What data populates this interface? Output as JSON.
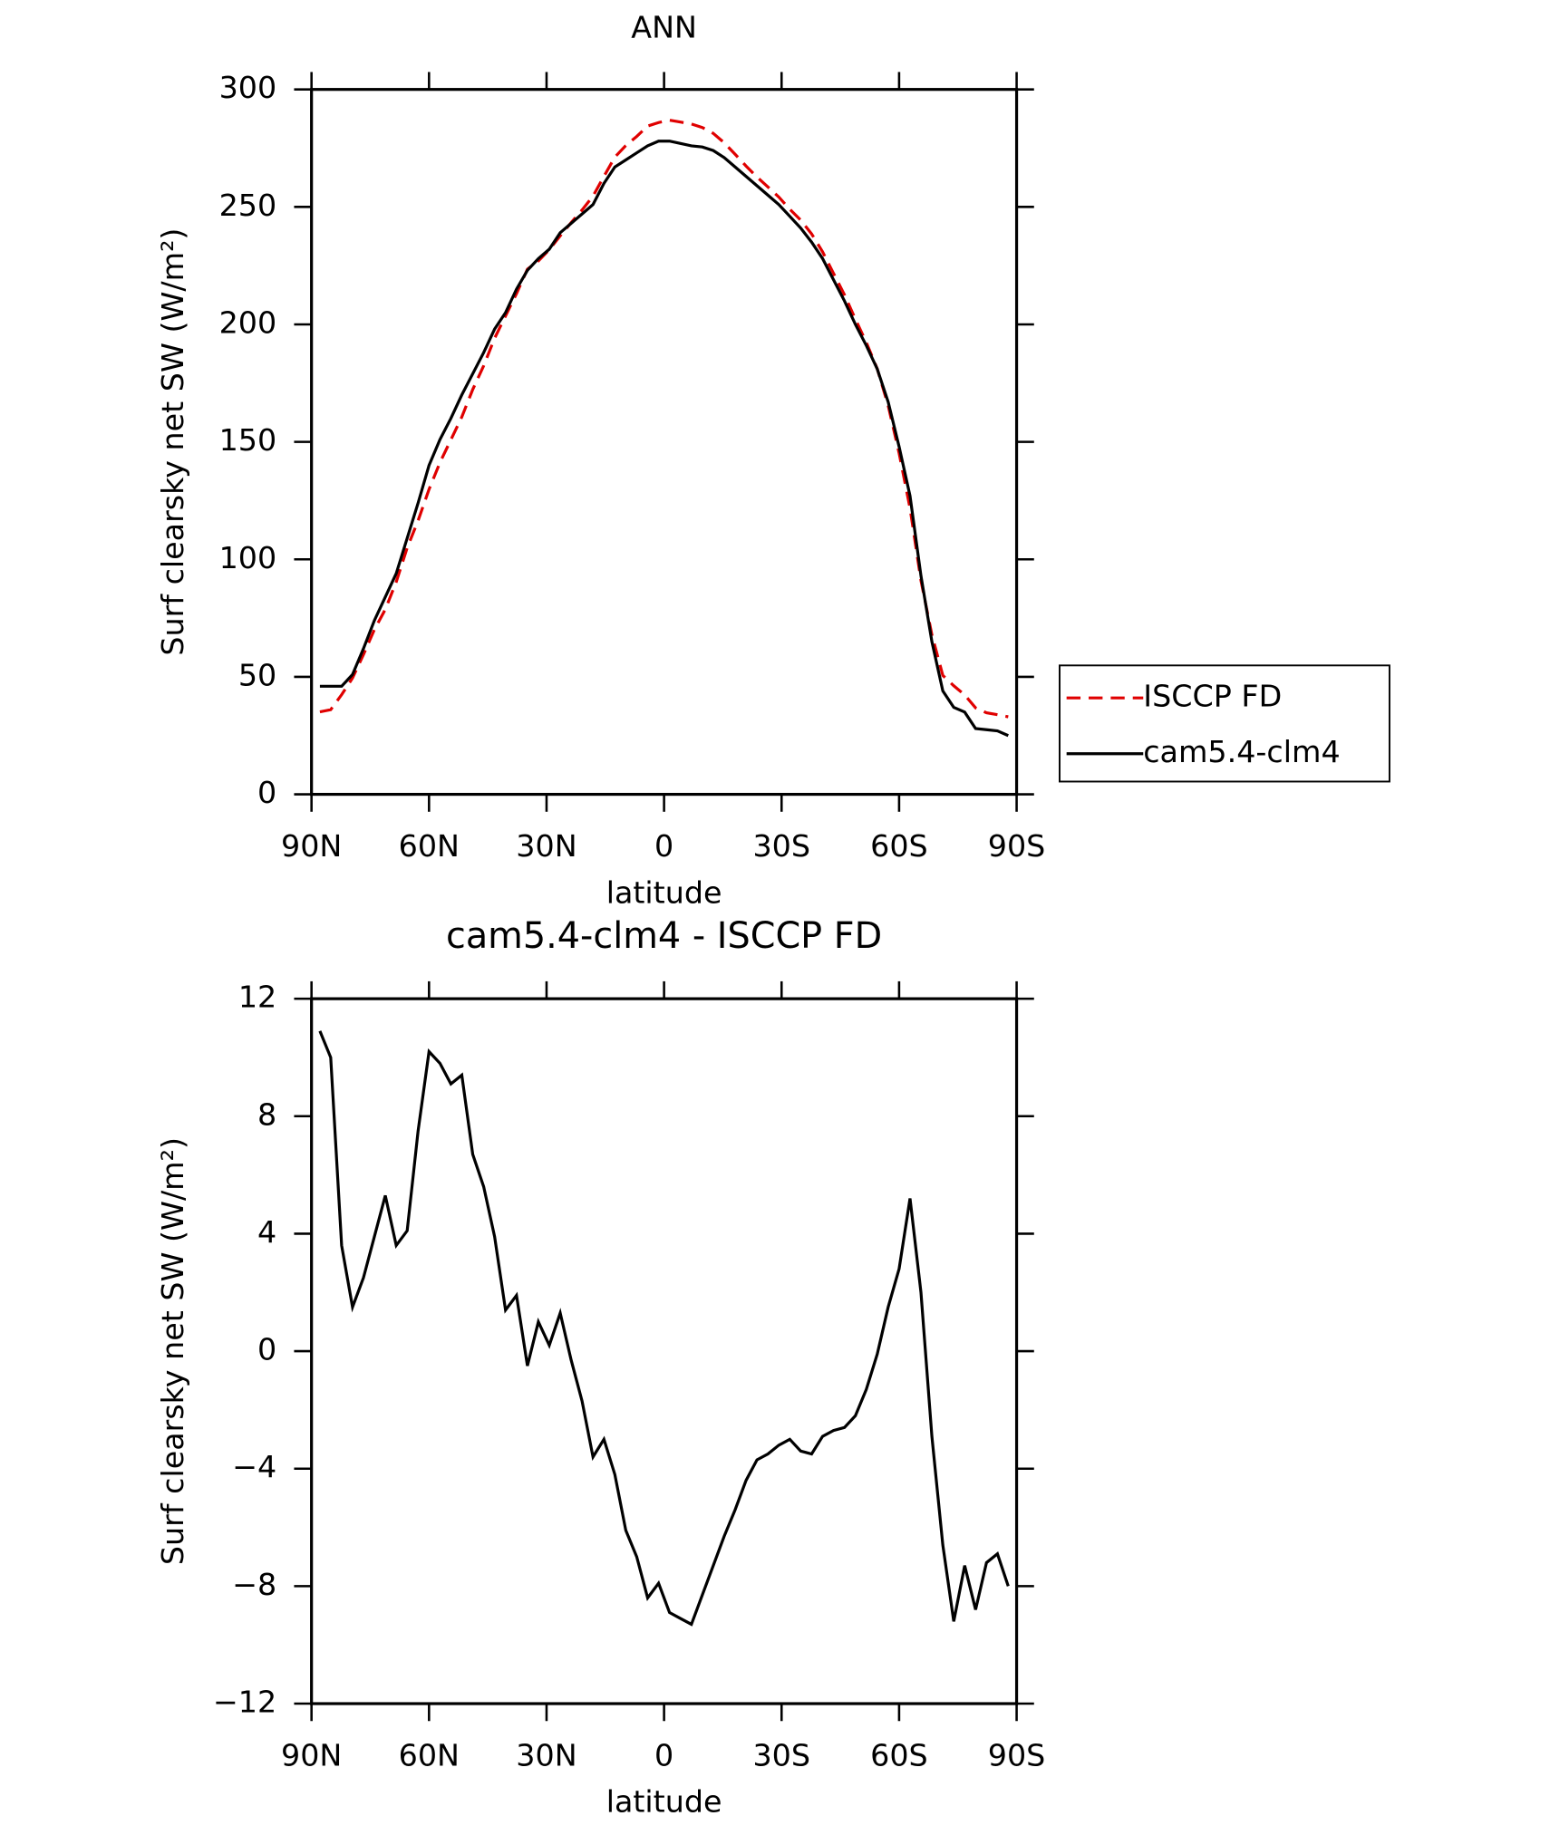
{
  "chart_data": [
    {
      "type": "line",
      "title": "ANN",
      "x_label": "latitude",
      "y_label": "Surf clearsky net SW (W/m²)",
      "x": [
        87.86,
        85.1,
        82.31,
        79.53,
        76.74,
        73.95,
        71.16,
        68.37,
        65.58,
        62.79,
        60.0,
        57.21,
        54.42,
        51.63,
        48.84,
        46.05,
        43.26,
        40.47,
        37.67,
        34.88,
        32.09,
        29.3,
        26.51,
        23.72,
        20.93,
        18.14,
        15.35,
        12.56,
        9.77,
        6.98,
        4.19,
        1.4,
        -1.4,
        -4.19,
        -6.98,
        -9.77,
        -12.56,
        -15.35,
        -18.14,
        -20.93,
        -23.72,
        -26.51,
        -29.3,
        -32.09,
        -34.88,
        -37.67,
        -40.47,
        -43.26,
        -46.05,
        -48.84,
        -51.63,
        -54.42,
        -57.21,
        -60.0,
        -62.79,
        -65.58,
        -68.37,
        -71.16,
        -73.95,
        -76.74,
        -79.53,
        -82.31,
        -85.1,
        -87.86
      ],
      "series": [
        {
          "name": "ISCCP FD",
          "color": "#e00000",
          "dash": true,
          "values": [
            35.1,
            36,
            42.4,
            49.5,
            59.5,
            70.1,
            78.7,
            90.4,
            104.9,
            116.5,
            129.8,
            141.2,
            150.9,
            160.6,
            172.3,
            182.4,
            194.1,
            203.6,
            213.1,
            223.5,
            227,
            231.8,
            237.7,
            243.3,
            248.7,
            254.6,
            263,
            271.2,
            276.1,
            280,
            284.4,
            285.9,
            286.9,
            286.1,
            285.3,
            283.8,
            281.3,
            277.3,
            272.4,
            267.4,
            262.7,
            258.5,
            254.2,
            249,
            244.4,
            238.5,
            230.9,
            221.7,
            212.6,
            202.2,
            192.3,
            181.1,
            165.5,
            145.2,
            121.8,
            91,
            67.9,
            50.6,
            46.2,
            42.3,
            36.8,
            34.7,
            33.9,
            33
          ]
        },
        {
          "name": "cam5.4-clm4",
          "color": "#000000",
          "dash": false,
          "values": [
            46,
            46,
            46,
            51,
            62,
            74,
            84,
            94,
            109,
            124,
            140,
            151,
            160,
            170,
            179,
            188,
            198,
            205,
            215,
            223,
            228,
            232,
            239,
            243,
            247,
            251,
            260,
            267,
            270,
            273,
            276,
            278,
            278,
            277,
            276,
            275.5,
            274,
            271,
            267,
            263,
            259,
            255,
            251,
            246,
            241,
            235,
            228,
            219,
            210,
            200,
            191,
            181,
            167,
            148,
            127,
            93,
            65,
            44,
            37,
            35,
            28,
            27.5,
            27,
            25
          ]
        }
      ],
      "xlim": [
        90,
        -90
      ],
      "xticks": [
        {
          "value": 90,
          "label": "90N"
        },
        {
          "value": 60,
          "label": "60N"
        },
        {
          "value": 30,
          "label": "30N"
        },
        0,
        {
          "value": -30,
          "label": "30S"
        },
        {
          "value": -60,
          "label": "60S"
        },
        {
          "value": -90,
          "label": "90S"
        }
      ],
      "ylim": [
        0,
        300
      ],
      "yticks": [
        0,
        50,
        100,
        150,
        200,
        250,
        300
      ],
      "legend": "outside-right"
    },
    {
      "type": "line",
      "title": "cam5.4-clm4 - ISCCP FD",
      "x_label": "latitude",
      "y_label": "Surf clearsky net SW (W/m²)",
      "x": [
        87.86,
        85.1,
        82.31,
        79.53,
        76.74,
        73.95,
        71.16,
        68.37,
        65.58,
        62.79,
        60.0,
        57.21,
        54.42,
        51.63,
        48.84,
        46.05,
        43.26,
        40.47,
        37.67,
        34.88,
        32.09,
        29.3,
        26.51,
        23.72,
        20.93,
        18.14,
        15.35,
        12.56,
        9.77,
        6.98,
        4.19,
        1.4,
        -1.4,
        -4.19,
        -6.98,
        -9.77,
        -12.56,
        -15.35,
        -18.14,
        -20.93,
        -23.72,
        -26.51,
        -29.3,
        -32.09,
        -34.88,
        -37.67,
        -40.47,
        -43.26,
        -46.05,
        -48.84,
        -51.63,
        -54.42,
        -57.21,
        -60.0,
        -62.79,
        -65.58,
        -68.37,
        -71.16,
        -73.95,
        -76.74,
        -79.53,
        -82.31,
        -85.1,
        -87.86
      ],
      "color": "#000000",
      "values": [
        10.9,
        10.0,
        3.6,
        1.5,
        2.5,
        3.9,
        5.3,
        3.6,
        4.1,
        7.5,
        10.2,
        9.8,
        9.1,
        9.4,
        6.7,
        5.6,
        3.9,
        1.4,
        1.9,
        -0.5,
        1.0,
        0.2,
        1.3,
        -0.3,
        -1.7,
        -3.6,
        -3.0,
        -4.2,
        -6.1,
        -7.0,
        -8.4,
        -7.9,
        -8.9,
        -9.1,
        -9.3,
        -8.3,
        -7.3,
        -6.3,
        -5.4,
        -4.4,
        -3.7,
        -3.5,
        -3.2,
        -3.0,
        -3.4,
        -3.5,
        -2.9,
        -2.7,
        -2.6,
        -2.2,
        -1.3,
        -0.1,
        1.5,
        2.8,
        5.2,
        2.0,
        -2.9,
        -6.6,
        -9.2,
        -7.3,
        -8.8,
        -7.2,
        -6.9,
        -8.0
      ],
      "xlim": [
        90,
        -90
      ],
      "xticks": [
        {
          "value": 90,
          "label": "90N"
        },
        {
          "value": 60,
          "label": "60N"
        },
        {
          "value": 30,
          "label": "30N"
        },
        0,
        {
          "value": -30,
          "label": "30S"
        },
        {
          "value": -60,
          "label": "60S"
        },
        {
          "value": -90,
          "label": "90S"
        }
      ],
      "ylim": [
        -12,
        12
      ],
      "yticks": [
        {
          "value": -12,
          "label": "−12"
        },
        {
          "value": -8,
          "label": "−8"
        },
        {
          "value": -4,
          "label": "−4"
        },
        0,
        4,
        8,
        12
      ]
    }
  ]
}
